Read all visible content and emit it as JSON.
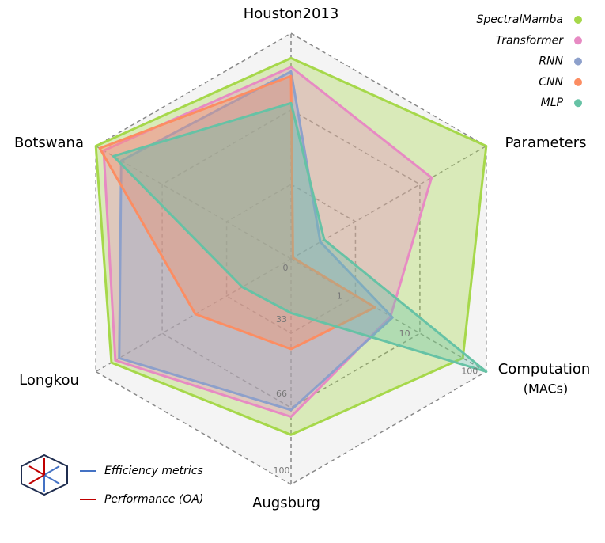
{
  "chart_data": {
    "type": "radar",
    "categories": [
      "Houston2013",
      "Parameters",
      "Computation",
      "Augsburg",
      "Longkou",
      "Botswana"
    ],
    "unit_label": "(MACs)",
    "rlim": [
      0,
      100
    ],
    "rticks": [
      0,
      33,
      66,
      100
    ],
    "rticks2": [
      {
        "value": 33.3,
        "label": "1"
      },
      {
        "value": 66.7,
        "label": "10"
      },
      {
        "value": 100,
        "label": "100"
      }
    ],
    "series": [
      {
        "name": "SpectralMamba",
        "color": "#a6d84a",
        "label_color": "#c00000",
        "values": [
          89,
          100,
          88,
          78,
          92,
          100
        ]
      },
      {
        "name": "Transformer",
        "color": "#e78ac3",
        "values": [
          85,
          72,
          51,
          70,
          90,
          96
        ]
      },
      {
        "name": "RNN",
        "color": "#8da0cb",
        "values": [
          83,
          15,
          52,
          67,
          88,
          87
        ]
      },
      {
        "name": "CNN",
        "color": "#fc8d62",
        "values": [
          81,
          1,
          43,
          40,
          49,
          98
        ]
      },
      {
        "name": "MLP",
        "color": "#66c2a5",
        "values": [
          69,
          17,
          100,
          24,
          25,
          91
        ]
      }
    ],
    "axis_groups": [
      {
        "name": "Efficiency metrics",
        "color": "#4472c4"
      },
      {
        "name": "Performance (OA)",
        "color": "#c00000"
      }
    ]
  }
}
